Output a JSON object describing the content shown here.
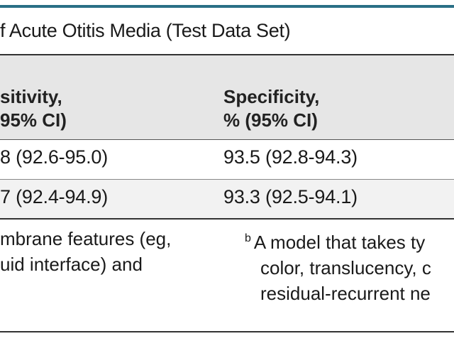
{
  "table": {
    "title": "f Acute Otitis Media (Test Data Set)",
    "headers": [
      {
        "line1": "sitivity,",
        "line2": "95% CI)"
      },
      {
        "line1": "Specificity,",
        "line2": "% (95% CI)"
      }
    ],
    "rows": [
      {
        "sensitivity": "8 (92.6-95.0)",
        "specificity": "93.5 (92.8-94.3)"
      },
      {
        "sensitivity": "7 (92.4-94.9)",
        "specificity": "93.3 (92.5-94.1)"
      }
    ]
  },
  "footnotes": {
    "left": {
      "line1": "mbrane features (eg,",
      "line2": "uid interface) and"
    },
    "right": {
      "marker": "b",
      "line1": "A model that takes ty",
      "line2": "color, translucency, c",
      "line3": "residual-recurrent ne"
    }
  },
  "colors": {
    "accent_rule": "#2a6f86",
    "header_band": "#e6e6e6",
    "zebra_row": "#f2f2f2"
  }
}
